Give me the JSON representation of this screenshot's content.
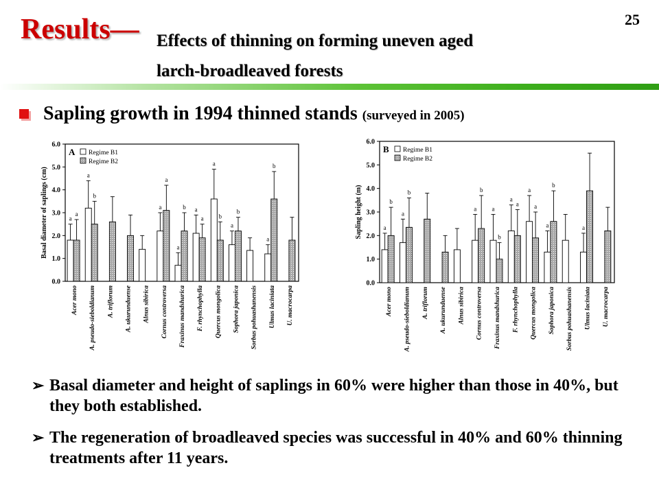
{
  "page_number": "25",
  "title": {
    "results": "Results—",
    "subtitle_line1": "Effects of thinning on forming uneven aged",
    "subtitle_line2": "larch-broadleaved forests"
  },
  "section_heading": "Sapling growth in 1994 thinned stands",
  "section_heading_note": "(surveyed in 2005)",
  "bullets": [
    "Basal diameter and height of saplings in 60% were higher than those in 40%, but they both established.",
    "The regeneration of broadleaved species was successful in 40% and 60% thinning treatments after 11 years."
  ],
  "colors": {
    "title_red": "#cc0000",
    "rule_green": "#3dae1c",
    "bar_b2": "#a8a8a8",
    "bar_b1": "#ffffff"
  },
  "chart_data": [
    {
      "type": "bar",
      "panel": "A",
      "ylabel": "Basal diameter of saplings (cm)",
      "ylim": [
        0,
        6
      ],
      "yticks": [
        "0.0",
        "1.0",
        "2.0",
        "3.0",
        "4.0",
        "5.0",
        "6.0"
      ],
      "legend": "top-left",
      "categories": [
        "Acer mono",
        "A. pseudo-sieboldianum",
        "A. triflorum",
        "A. ukurunduense",
        "Alnus sibirica",
        "Cornus controversa",
        "Fraxinus mandshurica",
        "F. rhynchophylla",
        "Quercus mongolica",
        "Sophora japonica",
        "Sorbus pohuashanensis",
        "Ulmus laciniata",
        "U. macrocarpa"
      ],
      "series": [
        {
          "name": "Regime B1",
          "values": [
            1.8,
            3.2,
            null,
            null,
            1.4,
            2.2,
            0.7,
            2.1,
            3.6,
            1.6,
            1.35,
            1.2,
            null
          ],
          "errors": [
            0.7,
            1.2,
            null,
            null,
            0.6,
            0.8,
            0.55,
            0.8,
            1.3,
            0.6,
            0.55,
            0.4,
            null
          ],
          "labels": [
            "a",
            "a",
            "",
            "",
            "",
            "a",
            "a",
            "a",
            "a",
            "a",
            "",
            "a",
            ""
          ]
        },
        {
          "name": "Regime B2",
          "values": [
            1.8,
            2.5,
            2.6,
            2.0,
            null,
            3.1,
            2.2,
            1.9,
            1.8,
            2.2,
            null,
            3.6,
            1.8
          ],
          "errors": [
            0.9,
            1.0,
            1.1,
            0.9,
            null,
            1.1,
            0.8,
            0.6,
            0.8,
            0.6,
            null,
            1.2,
            1.0
          ],
          "labels": [
            "a",
            "b",
            "",
            "",
            "",
            "a",
            "b",
            "a",
            "b",
            "b",
            "",
            "b",
            ""
          ]
        }
      ]
    },
    {
      "type": "bar",
      "panel": "B",
      "ylabel": "Sapling height (m)",
      "ylim": [
        0,
        6
      ],
      "yticks": [
        "0.0",
        "1.0",
        "2.0",
        "3.0",
        "4.0",
        "5.0",
        "6.0"
      ],
      "legend": "top-left",
      "categories": [
        "Acer mono",
        "A. pseudo-sieboldianum",
        "A. triflorum",
        "A. ukurunduense",
        "Alnus sibirica",
        "Cornus controversa",
        "Fraxinus mandshurica",
        "F. rhynchophylla",
        "Quercus mongolica",
        "Sophora japonica",
        "Sorbus pohuashanensis",
        "Ulmus laciniata",
        "U. macrocarpa"
      ],
      "series": [
        {
          "name": "Regime B1",
          "values": [
            1.4,
            1.7,
            null,
            null,
            1.4,
            1.8,
            1.8,
            2.2,
            2.6,
            1.3,
            1.8,
            1.3,
            null
          ],
          "errors": [
            0.7,
            1.0,
            null,
            null,
            0.9,
            1.1,
            1.1,
            1.1,
            1.1,
            0.9,
            1.1,
            0.8,
            null
          ],
          "labels": [
            "a",
            "a",
            "",
            "",
            "",
            "a",
            "a",
            "a",
            "a",
            "a",
            "",
            "a",
            ""
          ]
        },
        {
          "name": "Regime B2",
          "values": [
            2.0,
            2.35,
            2.7,
            1.3,
            null,
            2.3,
            1.0,
            2.0,
            1.9,
            2.6,
            null,
            3.9,
            2.2
          ],
          "errors": [
            1.2,
            1.25,
            1.1,
            0.7,
            null,
            1.4,
            0.7,
            1.1,
            1.1,
            1.3,
            null,
            1.6,
            1.0
          ],
          "labels": [
            "b",
            "b",
            "",
            "",
            "",
            "b",
            "b",
            "a",
            "a",
            "b",
            "",
            "",
            ""
          ]
        }
      ]
    }
  ]
}
